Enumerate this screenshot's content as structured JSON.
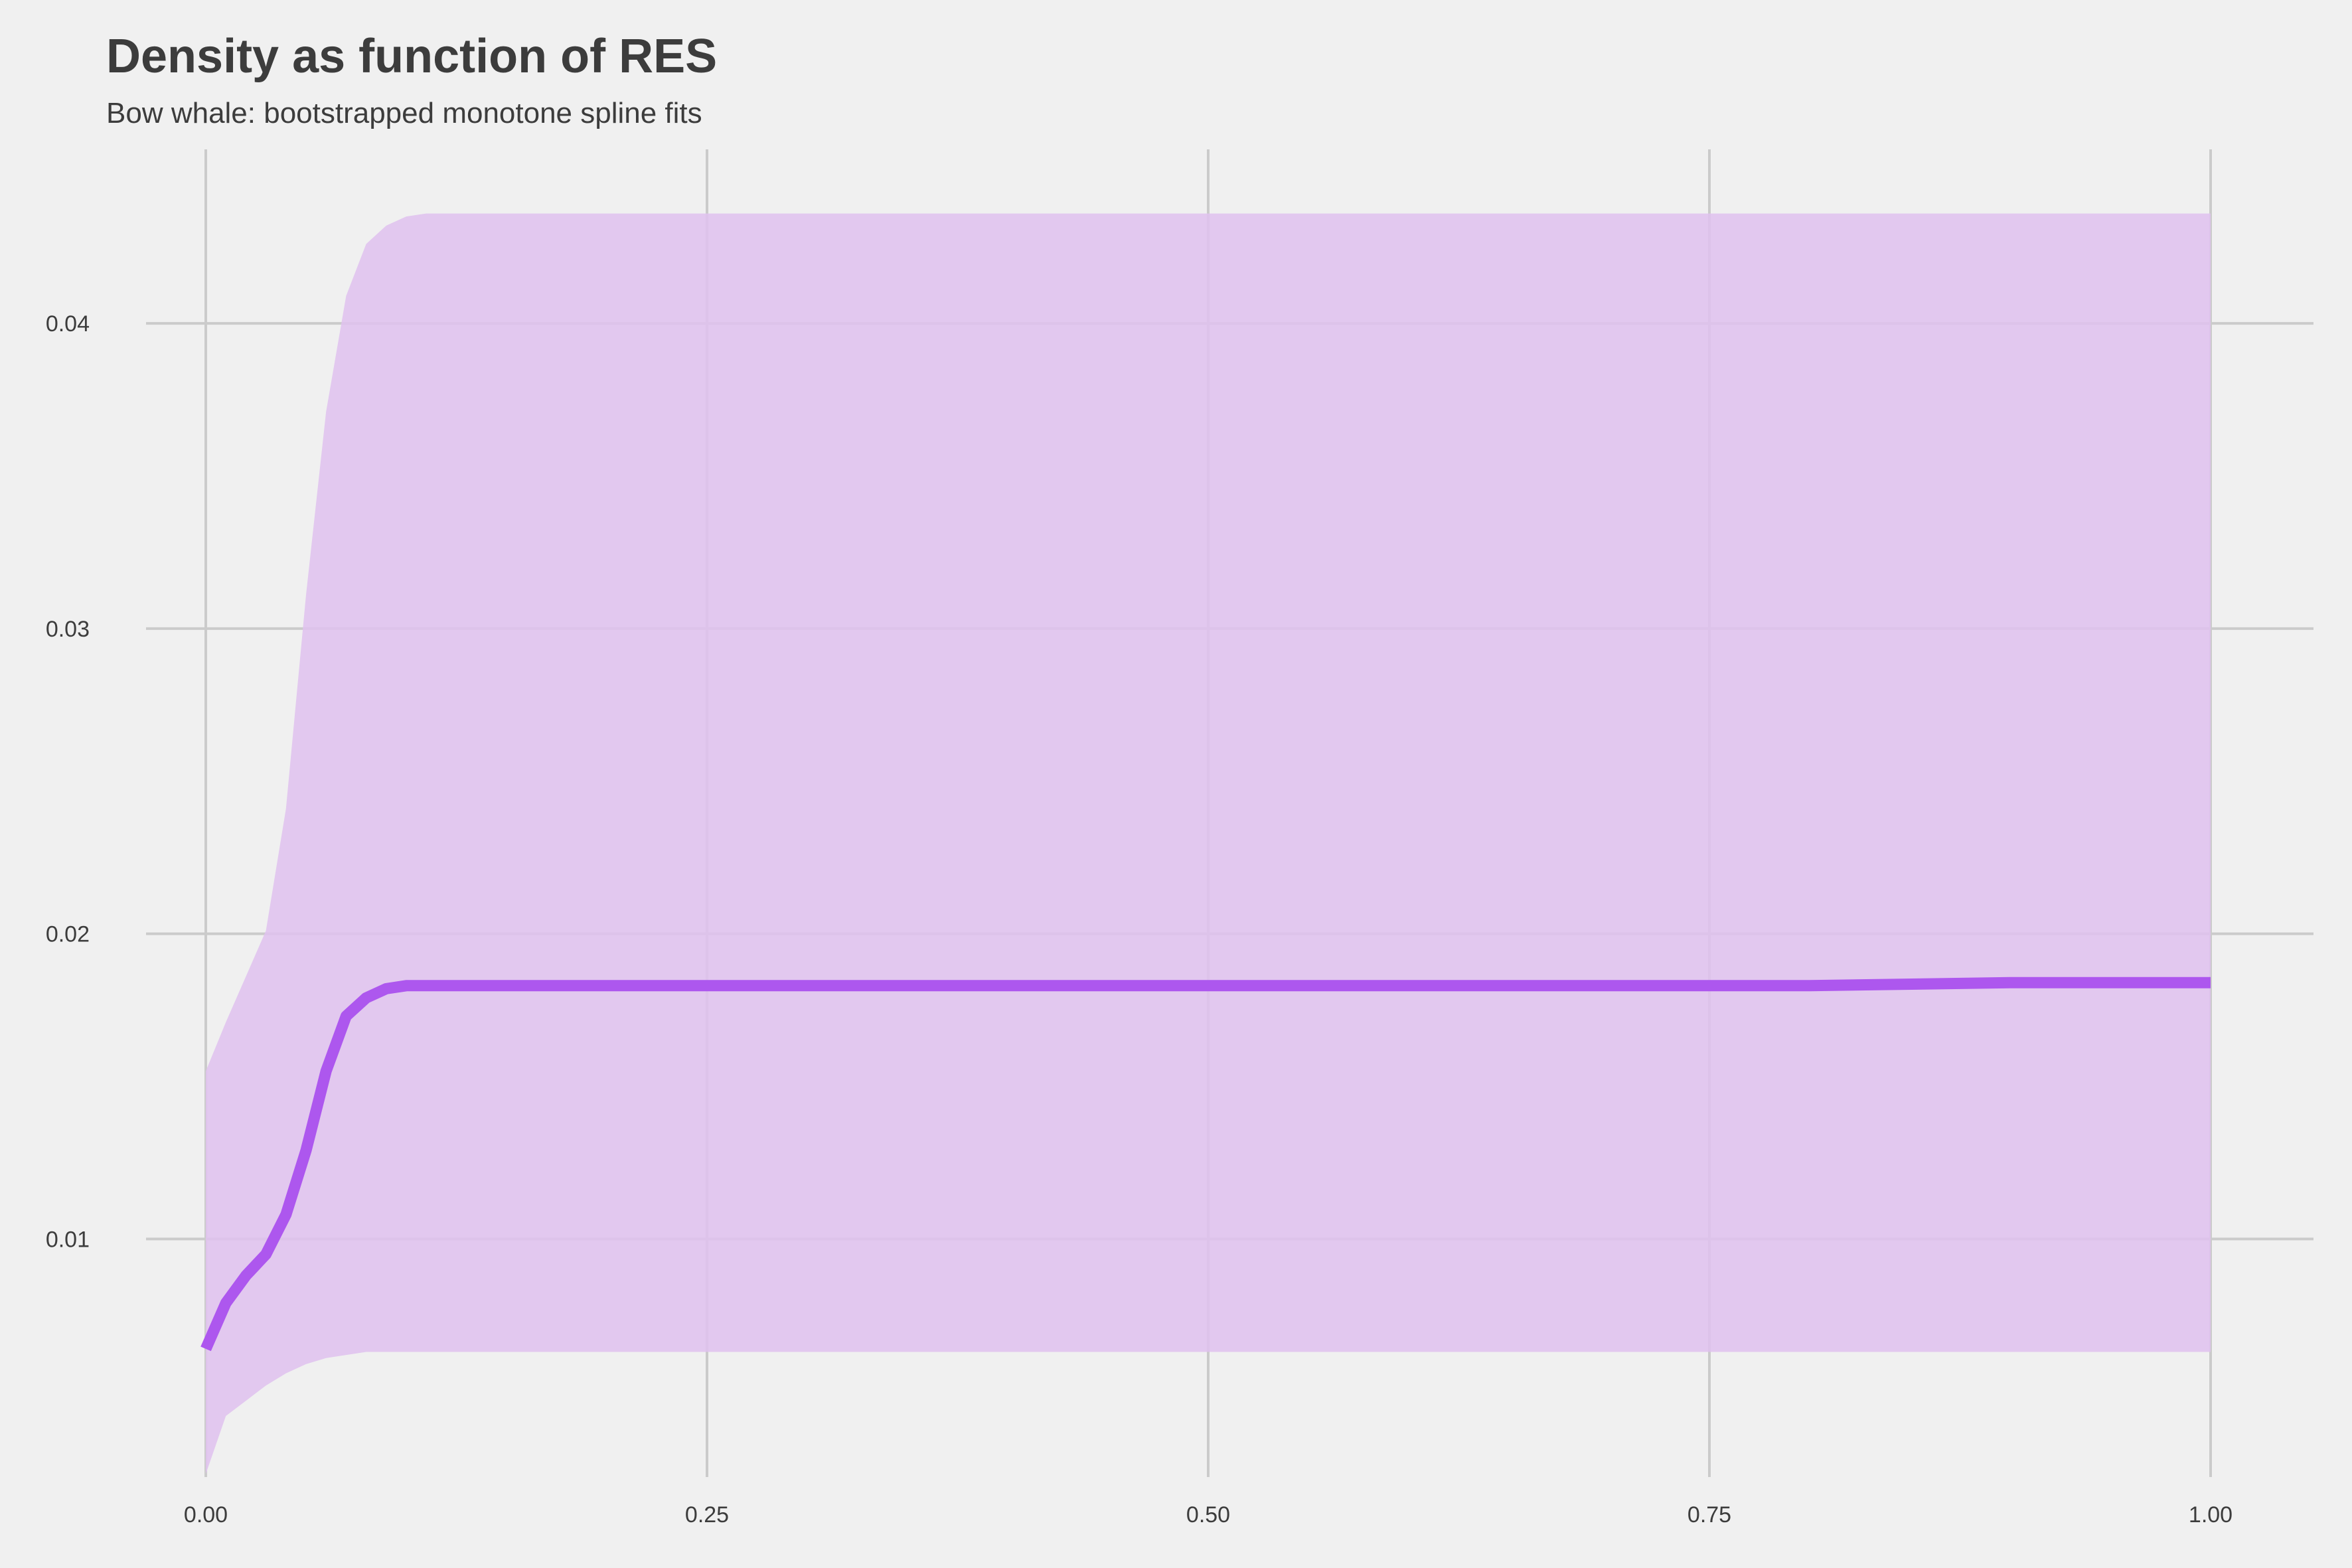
{
  "chart_data": {
    "type": "area",
    "title": "Density as function of RES",
    "subtitle": "Bow whale: bootstrapped monotone spline fits",
    "xlabel": "",
    "ylabel": "",
    "xlim": [
      0,
      1
    ],
    "ylim": [
      0.0022,
      0.0457
    ],
    "x_ticks": [
      0,
      0.25,
      0.5,
      0.75,
      1
    ],
    "x_tick_labels": [
      "0.00",
      "0.25",
      "0.50",
      "0.75",
      "1.00"
    ],
    "y_ticks": [
      0.01,
      0.02,
      0.03,
      0.04
    ],
    "y_tick_labels": [
      "0.01",
      "0.02",
      "0.03",
      "0.04"
    ],
    "grid": true,
    "colors": {
      "background": "#f0f0f0",
      "grid": "#cbcbcb",
      "band": "#dfc2ee",
      "line": "#ad57ee",
      "text": "#3c3c3c"
    },
    "x": [
      0,
      0.01,
      0.02,
      0.03,
      0.04,
      0.05,
      0.06,
      0.07,
      0.08,
      0.09,
      0.1,
      0.11,
      0.12,
      0.15,
      0.2,
      0.3,
      0.4,
      0.5,
      0.6,
      0.7,
      0.8,
      0.9,
      1.0
    ],
    "series": [
      {
        "role": "band",
        "lower": [
          0.0023,
          0.0042,
          0.0047,
          0.0052,
          0.0056,
          0.0059,
          0.0061,
          0.0062,
          0.0063,
          0.0063,
          0.0063,
          0.0063,
          0.0063,
          0.0063,
          0.0063,
          0.0063,
          0.0063,
          0.0063,
          0.0063,
          0.0063,
          0.0063,
          0.0063,
          0.0063
        ],
        "upper": [
          0.0155,
          0.0171,
          0.0186,
          0.0201,
          0.0241,
          0.0311,
          0.0371,
          0.0409,
          0.0426,
          0.0432,
          0.0435,
          0.0436,
          0.0436,
          0.0436,
          0.0436,
          0.0436,
          0.0436,
          0.0436,
          0.0436,
          0.0436,
          0.0436,
          0.0436,
          0.0436
        ]
      },
      {
        "role": "line",
        "values": [
          0.0064,
          0.0079,
          0.0088,
          0.0095,
          0.0108,
          0.0129,
          0.0155,
          0.0173,
          0.0179,
          0.0182,
          0.0183,
          0.0183,
          0.0183,
          0.0183,
          0.0183,
          0.0183,
          0.0183,
          0.0183,
          0.0183,
          0.0183,
          0.0183,
          0.0184,
          0.0184
        ]
      }
    ]
  }
}
